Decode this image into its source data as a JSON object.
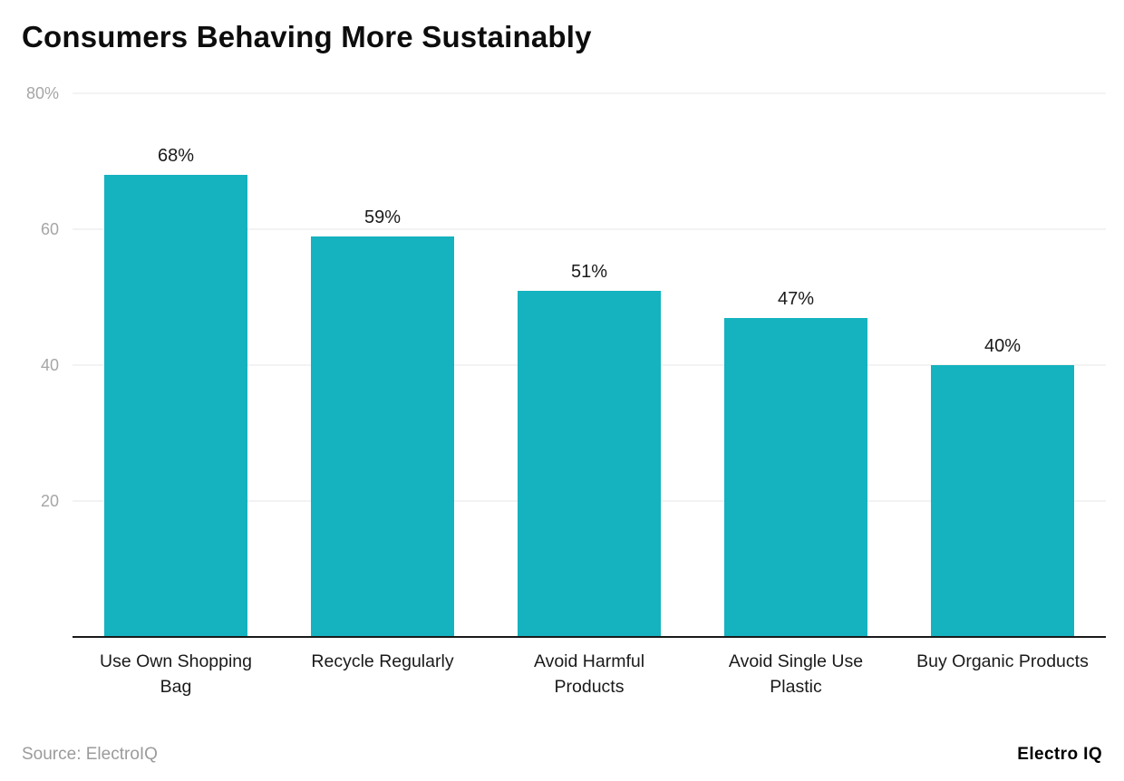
{
  "title": "Consumers Behaving More Sustainably",
  "source": "Source: ElectroIQ",
  "brand": "Electro IQ",
  "colors": {
    "bar": "#15b2bf",
    "grid": "#e7e7e7",
    "axis": "#1a1a1a",
    "tick": "#a6a6a6"
  },
  "chart_data": {
    "type": "bar",
    "title": "Consumers Behaving More Sustainably",
    "categories": [
      "Use Own Shopping Bag",
      "Recycle Regularly",
      "Avoid Harmful Products",
      "Avoid Single Use Plastic",
      "Buy Organic Products"
    ],
    "values": [
      68,
      59,
      51,
      47,
      40
    ],
    "value_labels": [
      "68%",
      "59%",
      "51%",
      "47%",
      "40%"
    ],
    "xlabel": "",
    "ylabel": "",
    "ylim": [
      0,
      80
    ],
    "y_ticks": [
      {
        "value": 80,
        "label": "80%"
      },
      {
        "value": 60,
        "label": "60"
      },
      {
        "value": 40,
        "label": "40"
      },
      {
        "value": 20,
        "label": "20"
      }
    ],
    "grid": "horizontal",
    "legend": "none"
  }
}
